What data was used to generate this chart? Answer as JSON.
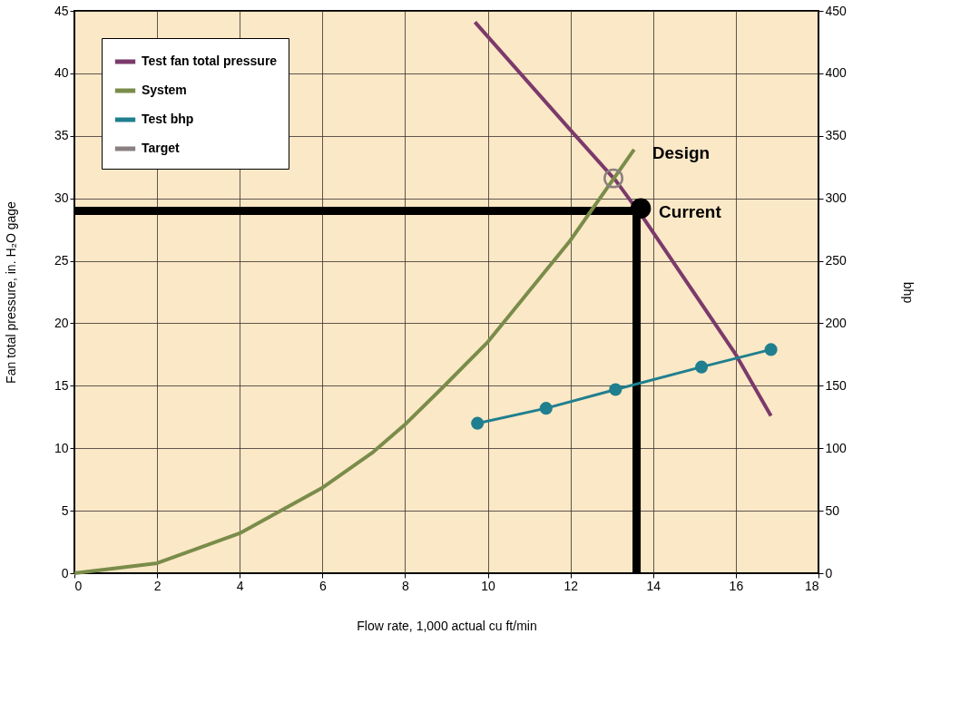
{
  "chart_data": {
    "type": "line",
    "xlabel": "Flow rate, 1,000 actual cu ft/min",
    "ylabel": "Fan total pressure, in. H₂O gage",
    "y2label": "bhp",
    "xlim": [
      0,
      18
    ],
    "xticks": [
      0,
      2,
      4,
      6,
      8,
      10,
      12,
      14,
      16,
      18
    ],
    "ylim": [
      0,
      45
    ],
    "yticks": [
      0,
      5,
      10,
      15,
      20,
      25,
      30,
      35,
      40,
      45
    ],
    "y2lim": [
      0,
      450
    ],
    "y2ticks": [
      0,
      50,
      100,
      150,
      200,
      250,
      300,
      350,
      400,
      450
    ],
    "grid": true,
    "legend": "top left",
    "series": [
      {
        "color": "#000000",
        "x": [
          0,
          13.6,
          13.6
        ],
        "values": [
          29,
          29,
          0
        ]
      },
      {
        "name": "Test fan total pressure",
        "color": "#7b3a6b",
        "x": [
          9.69,
          11.99,
          13.1,
          13.79,
          16.0,
          16.85
        ],
        "values": [
          44.1,
          35.5,
          31.4,
          28.3,
          17.5,
          12.6
        ]
      },
      {
        "name": "System",
        "color": "#7a8c4a",
        "x": [
          0,
          2.0,
          4.0,
          5.98,
          7.23,
          8.03,
          8.92,
          10.0,
          11.99,
          13.54
        ],
        "values": [
          0,
          0.8,
          3.2,
          6.8,
          9.7,
          12.0,
          14.9,
          18.5,
          26.6,
          33.9
        ]
      },
      {
        "name": "Test bhp",
        "axis": "y2",
        "marker": "circle",
        "color": "#1f7f8f",
        "x": [
          9.75,
          11.41,
          13.09,
          15.17,
          16.85
        ],
        "values": [
          120,
          132,
          147,
          165,
          179
        ]
      },
      {
        "name": "Target",
        "type": "scatter",
        "marker": "circle",
        "color": "#8a8080",
        "x": [
          13.04
        ],
        "values": [
          31.6
        ]
      },
      {
        "type": "scatter",
        "marker": "circle",
        "color": "#000000",
        "x": [
          13.7
        ],
        "values": [
          29.2
        ]
      }
    ],
    "annotations": [
      {
        "text": "Design",
        "x": 13.54,
        "y": 33.9
      },
      {
        "text": "Current",
        "x": 13.7,
        "y": 29.2
      }
    ]
  }
}
